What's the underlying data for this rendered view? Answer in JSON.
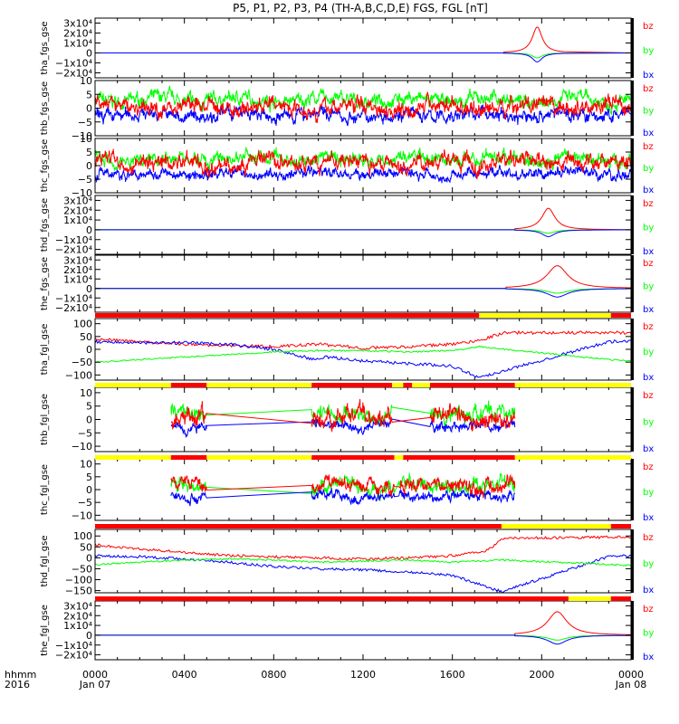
{
  "title": "P5, P1, P2, P3, P4 (TH-A,B,C,D,E) FGS, FGL [nT]",
  "colors": {
    "bx": "#0000ff",
    "by": "#00ff00",
    "bz": "#ff0000",
    "bar_red": "#ff0000",
    "bar_yellow": "#ffff00"
  },
  "time_axis": {
    "label_top": "hhmm",
    "label_bottom": "2016",
    "ticks": [
      {
        "hour": 0,
        "hhmm": "0000",
        "date": "Jan 07"
      },
      {
        "hour": 4,
        "hhmm": "0400",
        "date": ""
      },
      {
        "hour": 8,
        "hhmm": "0800",
        "date": ""
      },
      {
        "hour": 12,
        "hhmm": "1200",
        "date": ""
      },
      {
        "hour": 16,
        "hhmm": "1600",
        "date": ""
      },
      {
        "hour": 20,
        "hhmm": "2000",
        "date": ""
      },
      {
        "hour": 24,
        "hhmm": "0000",
        "date": "Jan 08"
      }
    ],
    "range_hours": [
      0,
      24
    ]
  },
  "chart_data": [
    {
      "type": "line",
      "panel": "tha_fgs_gse",
      "ylabel": "tha_fgs_gse",
      "ylim": [
        -25000,
        35000
      ],
      "yticks": [
        {
          "v": 30000,
          "l": "3x10⁴"
        },
        {
          "v": 20000,
          "l": "2x10⁴"
        },
        {
          "v": 10000,
          "l": "1x10⁴"
        },
        {
          "v": 0,
          "l": "0"
        },
        {
          "v": -10000,
          "l": "−1x10⁴"
        },
        {
          "v": -20000,
          "l": "−2x10⁴"
        }
      ],
      "series": [
        {
          "name": "bz",
          "style": "spike",
          "start": 18.3,
          "end": 21.0,
          "center": 19.8,
          "peak": 26000
        },
        {
          "name": "by",
          "style": "spike",
          "start": 18.3,
          "end": 21.0,
          "center": 19.8,
          "peak": -5000
        },
        {
          "name": "bx",
          "style": "spike",
          "start": 18.3,
          "end": 21.0,
          "center": 19.8,
          "peak": -9000
        }
      ],
      "legend": [
        "bz",
        "by",
        "bx"
      ]
    },
    {
      "type": "line",
      "panel": "thb_fgs_gse",
      "ylabel": "thb_fgs_gse",
      "ylim": [
        -10,
        10
      ],
      "yticks": [
        {
          "v": 10,
          "l": "10"
        },
        {
          "v": 5,
          "l": "5"
        },
        {
          "v": 0,
          "l": "0"
        },
        {
          "v": -5,
          "l": "−5"
        },
        {
          "v": -10,
          "l": "−10"
        }
      ],
      "series": [
        {
          "name": "by",
          "style": "noise",
          "start": 0.0,
          "end": 24.0,
          "mean": 3.0,
          "amp": 2.5
        },
        {
          "name": "bx",
          "style": "noise",
          "start": 0.0,
          "end": 24.0,
          "mean": -2.5,
          "amp": 2.5
        },
        {
          "name": "bz",
          "style": "noise",
          "start": 0.0,
          "end": 24.0,
          "mean": 0.5,
          "amp": 3.0
        }
      ],
      "legend": [
        "bz",
        "by",
        "bx"
      ]
    },
    {
      "type": "line",
      "panel": "thc_fgs_gse",
      "ylabel": "thc_fgs_gse",
      "ylim": [
        -10,
        10
      ],
      "yticks": [
        {
          "v": 10,
          "l": "10"
        },
        {
          "v": 5,
          "l": "5"
        },
        {
          "v": 0,
          "l": "0"
        },
        {
          "v": -5,
          "l": "−5"
        },
        {
          "v": -10,
          "l": "−10"
        }
      ],
      "series": [
        {
          "name": "by",
          "style": "noise",
          "start": 0.0,
          "end": 24.0,
          "mean": 2.5,
          "amp": 2.5
        },
        {
          "name": "bx",
          "style": "noise",
          "start": 0.0,
          "end": 24.0,
          "mean": -3.0,
          "amp": 2.0
        },
        {
          "name": "bz",
          "style": "noise",
          "start": 0.0,
          "end": 24.0,
          "mean": 1.0,
          "amp": 3.0
        }
      ],
      "legend": [
        "bz",
        "by",
        "bx"
      ]
    },
    {
      "type": "line",
      "panel": "thd_fgs_gse",
      "ylabel": "thd_fgs_gse",
      "ylim": [
        -25000,
        35000
      ],
      "yticks": [
        {
          "v": 30000,
          "l": "3x10⁴"
        },
        {
          "v": 20000,
          "l": "2x10⁴"
        },
        {
          "v": 10000,
          "l": "1x10⁴"
        },
        {
          "v": 0,
          "l": "0"
        },
        {
          "v": -10000,
          "l": "−1x10⁴"
        },
        {
          "v": -20000,
          "l": "−2x10⁴"
        }
      ],
      "series": [
        {
          "name": "bz",
          "style": "spike",
          "start": 18.8,
          "end": 22.3,
          "center": 20.3,
          "peak": 22000
        },
        {
          "name": "by",
          "style": "spike",
          "start": 18.8,
          "end": 22.3,
          "center": 20.3,
          "peak": -3500
        },
        {
          "name": "bx",
          "style": "spike",
          "start": 18.8,
          "end": 22.3,
          "center": 20.3,
          "peak": -7000
        }
      ],
      "legend": [
        "bz",
        "by",
        "bx"
      ]
    },
    {
      "type": "line",
      "panel": "the_fgs_gse",
      "ylabel": "the_fgs_gse",
      "ylim": [
        -25000,
        35000
      ],
      "yticks": [
        {
          "v": 30000,
          "l": "3x10⁴"
        },
        {
          "v": 20000,
          "l": "2x10⁴"
        },
        {
          "v": 10000,
          "l": "1x10⁴"
        },
        {
          "v": 0,
          "l": "0"
        },
        {
          "v": -10000,
          "l": "−1x10⁴"
        },
        {
          "v": -20000,
          "l": "−2x10⁴"
        }
      ],
      "series": [
        {
          "name": "bz",
          "style": "spike",
          "start": 18.4,
          "end": 24.0,
          "center": 20.7,
          "peak": 24000
        },
        {
          "name": "by",
          "style": "spike",
          "start": 18.4,
          "end": 24.0,
          "center": 20.7,
          "peak": -5000
        },
        {
          "name": "bx",
          "style": "spike",
          "start": 18.4,
          "end": 24.0,
          "center": 20.7,
          "peak": -9000
        }
      ],
      "legend": [
        "bz",
        "by",
        "bx"
      ]
    },
    {
      "type": "line",
      "panel": "tha_fgl_gse",
      "ylabel": "tha_fgl_gse",
      "ylim": [
        -120,
        120
      ],
      "yticks": [
        {
          "v": 100,
          "l": "100"
        },
        {
          "v": 50,
          "l": "50"
        },
        {
          "v": 0,
          "l": "0"
        },
        {
          "v": -50,
          "l": "−50"
        },
        {
          "v": -100,
          "l": "−100"
        }
      ],
      "series": [
        {
          "name": "bz",
          "style": "path",
          "noise": 6,
          "pts": [
            [
              0,
              40
            ],
            [
              2,
              30
            ],
            [
              4,
              20
            ],
            [
              6,
              15
            ],
            [
              8,
              10
            ],
            [
              10,
              20
            ],
            [
              12,
              5
            ],
            [
              14,
              10
            ],
            [
              16,
              20
            ],
            [
              17.2,
              35
            ],
            [
              18.3,
              65
            ],
            [
              23,
              65
            ],
            [
              24,
              65
            ]
          ]
        },
        {
          "name": "bx",
          "style": "path",
          "noise": 6,
          "pts": [
            [
              0,
              30
            ],
            [
              2,
              25
            ],
            [
              4,
              25
            ],
            [
              6,
              20
            ],
            [
              8,
              0
            ],
            [
              9.8,
              -40
            ],
            [
              10.3,
              -30
            ],
            [
              12,
              -45
            ],
            [
              14,
              -55
            ],
            [
              16,
              -65
            ],
            [
              17.2,
              -110
            ],
            [
              23,
              30
            ],
            [
              24,
              30
            ]
          ]
        },
        {
          "name": "by",
          "style": "path",
          "noise": 3,
          "pts": [
            [
              0,
              -50
            ],
            [
              2,
              -40
            ],
            [
              4,
              -30
            ],
            [
              6,
              -20
            ],
            [
              8,
              -10
            ],
            [
              10,
              -5
            ],
            [
              12,
              -5
            ],
            [
              14,
              -10
            ],
            [
              16,
              -5
            ],
            [
              17.2,
              10
            ],
            [
              23,
              -40
            ],
            [
              24,
              -45
            ]
          ]
        }
      ],
      "legend": [
        "bz",
        "by",
        "bx"
      ]
    },
    {
      "type": "line",
      "panel": "thb_fgl_gse",
      "ylabel": "thb_fgl_gse",
      "ylim": [
        -12,
        12
      ],
      "yticks": [
        {
          "v": 10,
          "l": "10"
        },
        {
          "v": 5,
          "l": "5"
        },
        {
          "v": 0,
          "l": "0"
        },
        {
          "v": -5,
          "l": "−5"
        },
        {
          "v": -10,
          "l": "−10"
        }
      ],
      "segments": [
        [
          3.4,
          5.0
        ],
        [
          9.7,
          13.3
        ],
        [
          15.0,
          18.8
        ]
      ],
      "series": [
        {
          "name": "by",
          "style": "noise",
          "mean": 2.0,
          "amp": 3.0
        },
        {
          "name": "bx",
          "style": "noise",
          "mean": -2.5,
          "amp": 2.0
        },
        {
          "name": "bz",
          "style": "noise",
          "mean": 0.5,
          "amp": 3.5
        }
      ],
      "legend": [
        "bz",
        "by",
        "bx"
      ]
    },
    {
      "type": "line",
      "panel": "thc_fgl_gse",
      "ylabel": "thc_fgl_gse",
      "ylim": [
        -12,
        12
      ],
      "yticks": [
        {
          "v": 10,
          "l": "10"
        },
        {
          "v": 5,
          "l": "5"
        },
        {
          "v": 0,
          "l": "0"
        },
        {
          "v": -5,
          "l": "−5"
        },
        {
          "v": -10,
          "l": "−10"
        }
      ],
      "segments": [
        [
          3.4,
          5.0
        ],
        [
          9.7,
          13.4
        ],
        [
          13.6,
          18.8
        ]
      ],
      "series": [
        {
          "name": "by",
          "style": "noise",
          "mean": 1.5,
          "amp": 3.0
        },
        {
          "name": "bx",
          "style": "noise",
          "mean": -2.5,
          "amp": 2.0
        },
        {
          "name": "bz",
          "style": "noise",
          "mean": 1.5,
          "amp": 3.0
        }
      ],
      "legend": [
        "bz",
        "by",
        "bx"
      ]
    },
    {
      "type": "line",
      "panel": "thd_fgl_gse",
      "ylabel": "thd_fgl_gse",
      "ylim": [
        -160,
        130
      ],
      "yticks": [
        {
          "v": 100,
          "l": "100"
        },
        {
          "v": 50,
          "l": "50"
        },
        {
          "v": 0,
          "l": "0"
        },
        {
          "v": -50,
          "l": "−50"
        },
        {
          "v": -100,
          "l": "−100"
        },
        {
          "v": -150,
          "l": "−150"
        }
      ],
      "series": [
        {
          "name": "bz",
          "style": "path",
          "noise": 6,
          "pts": [
            [
              0,
              60
            ],
            [
              2,
              40
            ],
            [
              4,
              25
            ],
            [
              6,
              10
            ],
            [
              8,
              5
            ],
            [
              10,
              0
            ],
            [
              12,
              -5
            ],
            [
              14,
              0
            ],
            [
              16,
              10
            ],
            [
              17.5,
              30
            ],
            [
              18.3,
              90
            ],
            [
              24,
              95
            ]
          ]
        },
        {
          "name": "bx",
          "style": "path",
          "noise": 6,
          "pts": [
            [
              0,
              10
            ],
            [
              2,
              5
            ],
            [
              4,
              -5
            ],
            [
              6,
              -20
            ],
            [
              8,
              -40
            ],
            [
              10,
              -50
            ],
            [
              12,
              -55
            ],
            [
              14,
              -65
            ],
            [
              16,
              -80
            ],
            [
              18.2,
              -155
            ],
            [
              23,
              5
            ],
            [
              24,
              10
            ]
          ]
        },
        {
          "name": "by",
          "style": "path",
          "noise": 4,
          "pts": [
            [
              0,
              -30
            ],
            [
              2,
              -20
            ],
            [
              4,
              -10
            ],
            [
              6,
              -5
            ],
            [
              8,
              -10
            ],
            [
              10,
              -20
            ],
            [
              12,
              -15
            ],
            [
              14,
              -10
            ],
            [
              16,
              -20
            ],
            [
              18.2,
              -10
            ],
            [
              23,
              -30
            ],
            [
              24,
              -35
            ]
          ]
        }
      ],
      "legend": [
        "bz",
        "by",
        "bx"
      ]
    },
    {
      "type": "line",
      "panel": "the_fgl_gse",
      "ylabel": "the_fgl_gse",
      "ylim": [
        -25000,
        35000
      ],
      "yticks": [
        {
          "v": 30000,
          "l": "3x10⁴"
        },
        {
          "v": 20000,
          "l": "2x10⁴"
        },
        {
          "v": 10000,
          "l": "1x10⁴"
        },
        {
          "v": 0,
          "l": "0"
        },
        {
          "v": -10000,
          "l": "−1x10⁴"
        },
        {
          "v": -20000,
          "l": "−2x10⁴"
        }
      ],
      "series": [
        {
          "name": "bz",
          "style": "spike",
          "start": 18.8,
          "end": 24.0,
          "center": 20.7,
          "peak": 24000
        },
        {
          "name": "by",
          "style": "spike",
          "start": 18.8,
          "end": 24.0,
          "center": 20.7,
          "peak": -5000
        },
        {
          "name": "bx",
          "style": "spike",
          "start": 18.8,
          "end": 24.0,
          "center": 20.7,
          "peak": -9000
        }
      ],
      "legend": [
        "bz",
        "by",
        "bx"
      ]
    }
  ],
  "mode_bars": [
    {
      "above_panel": 5,
      "segments": [
        {
          "from": 0,
          "to": 17.2,
          "color": "bar_red"
        },
        {
          "from": 17.2,
          "to": 23.1,
          "color": "bar_yellow"
        },
        {
          "from": 23.1,
          "to": 24,
          "color": "bar_red"
        }
      ]
    },
    {
      "above_panel": 6,
      "segments": [
        {
          "from": 0,
          "to": 3.4,
          "color": "bar_yellow"
        },
        {
          "from": 3.4,
          "to": 5.0,
          "color": "bar_red"
        },
        {
          "from": 5.0,
          "to": 9.7,
          "color": "bar_yellow"
        },
        {
          "from": 9.7,
          "to": 13.3,
          "color": "bar_red"
        },
        {
          "from": 13.3,
          "to": 13.8,
          "color": "bar_yellow"
        },
        {
          "from": 13.8,
          "to": 14.2,
          "color": "bar_red"
        },
        {
          "from": 14.2,
          "to": 15.0,
          "color": "bar_yellow"
        },
        {
          "from": 15.0,
          "to": 18.8,
          "color": "bar_red"
        },
        {
          "from": 18.8,
          "to": 24,
          "color": "bar_yellow"
        }
      ]
    },
    {
      "above_panel": 7,
      "segments": [
        {
          "from": 0,
          "to": 3.4,
          "color": "bar_yellow"
        },
        {
          "from": 3.4,
          "to": 5.0,
          "color": "bar_red"
        },
        {
          "from": 5.0,
          "to": 9.7,
          "color": "bar_yellow"
        },
        {
          "from": 9.7,
          "to": 13.4,
          "color": "bar_red"
        },
        {
          "from": 13.4,
          "to": 13.8,
          "color": "bar_yellow"
        },
        {
          "from": 13.8,
          "to": 18.8,
          "color": "bar_red"
        },
        {
          "from": 18.8,
          "to": 24,
          "color": "bar_yellow"
        }
      ]
    },
    {
      "above_panel": 8,
      "segments": [
        {
          "from": 0,
          "to": 18.2,
          "color": "bar_red"
        },
        {
          "from": 18.2,
          "to": 23.1,
          "color": "bar_yellow"
        },
        {
          "from": 23.1,
          "to": 24,
          "color": "bar_red"
        }
      ]
    },
    {
      "above_panel": 9,
      "segments": [
        {
          "from": 0,
          "to": 21.2,
          "color": "bar_red"
        },
        {
          "from": 21.2,
          "to": 23.1,
          "color": "bar_yellow"
        },
        {
          "from": 23.1,
          "to": 24,
          "color": "bar_red"
        }
      ]
    }
  ]
}
